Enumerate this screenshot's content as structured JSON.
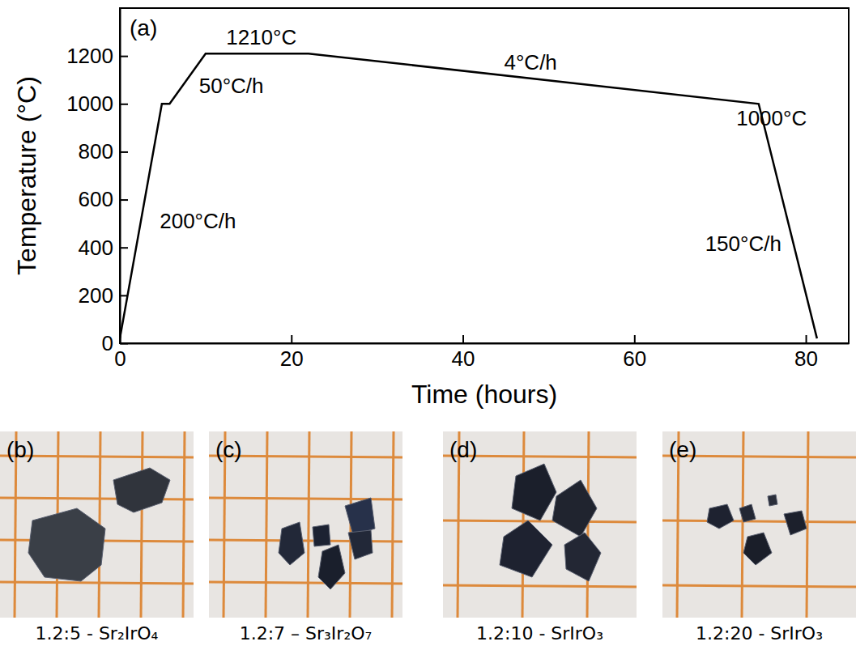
{
  "chart_data": {
    "type": "line",
    "panel_label": "(a)",
    "x_label": "Time (hours)",
    "y_label": "Temperature (°C)",
    "x": [
      0,
      4.9,
      5.8,
      10,
      22,
      74.5,
      81.3
    ],
    "values": [
      20,
      1000,
      1000,
      1210,
      1210,
      1000,
      20
    ],
    "color": "#000000",
    "xlim": [
      0,
      85
    ],
    "xticks": [
      0,
      20,
      40,
      60,
      80
    ],
    "ylim": [
      0,
      1400
    ],
    "yticks": [
      0,
      200,
      400,
      600,
      800,
      1000,
      1200
    ],
    "grid": false,
    "annotations": [
      {
        "text": "1210°C",
        "x": 16.5,
        "y": 1270
      },
      {
        "text": "50°C/h",
        "x": 13,
        "y": 1068
      },
      {
        "text": "4°C/h",
        "x": 47.9,
        "y": 1166
      },
      {
        "text": "1000°C",
        "x": 76,
        "y": 934
      },
      {
        "text": "200°C/h",
        "x": 9.1,
        "y": 505
      },
      {
        "text": "150°C/h",
        "x": 72.7,
        "y": 408
      }
    ]
  },
  "photos": [
    {
      "label": "(b)",
      "caption": "1.2:5 - Sr₂IrO₄"
    },
    {
      "label": "(c)",
      "caption": "1.2:7 – Sr₃Ir₂O₇"
    },
    {
      "label": "(d)",
      "caption": "1.2:10 - SrIrO₃"
    },
    {
      "label": "(e)",
      "caption": "1.2:20 - SrIrO₃"
    }
  ]
}
